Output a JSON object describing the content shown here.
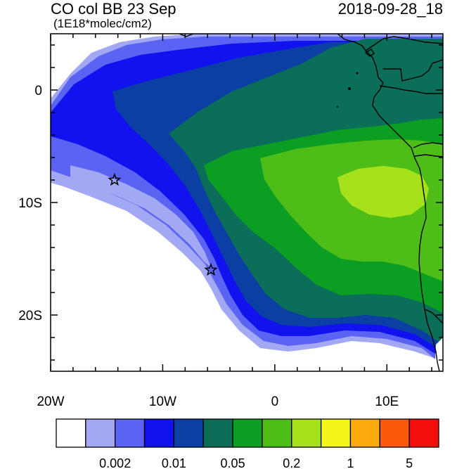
{
  "header": {
    "title": "CO col BB 23 Sep",
    "units": "(1E18*molec/cm2)",
    "datetime": "2018-09-28_18"
  },
  "map": {
    "lon_range": [
      -20,
      15
    ],
    "lat_range": [
      -25,
      5
    ],
    "x_tick_labels": [
      {
        "lon": -20,
        "text": "20W"
      },
      {
        "lon": -10,
        "text": "10W"
      },
      {
        "lon": 0,
        "text": "0"
      },
      {
        "lon": 10,
        "text": "10E"
      }
    ],
    "y_tick_labels": [
      {
        "lat": 0,
        "text": "0"
      },
      {
        "lat": -10,
        "text": "10S"
      },
      {
        "lat": -20,
        "text": "20S"
      }
    ],
    "markers": [
      {
        "name": "star",
        "lon": -14.3,
        "lat": -8.0
      },
      {
        "name": "star",
        "lon": -5.7,
        "lat": -16.0
      }
    ]
  },
  "colorbar": {
    "colors": [
      "#ffffff",
      "#a3a8f5",
      "#5b63f2",
      "#1212ee",
      "#0b3fa3",
      "#0a6e58",
      "#0b9e23",
      "#4fbd18",
      "#a6e21c",
      "#f4f51a",
      "#fbaa0b",
      "#fa5a0a",
      "#f50f0a"
    ],
    "labels": [
      {
        "boundary": 2,
        "text": "0.002"
      },
      {
        "boundary": 4,
        "text": "0.01"
      },
      {
        "boundary": 6,
        "text": "0.05"
      },
      {
        "boundary": 8,
        "text": "0.2"
      },
      {
        "boundary": 10,
        "text": "1"
      },
      {
        "boundary": 12,
        "text": "5"
      }
    ]
  }
}
